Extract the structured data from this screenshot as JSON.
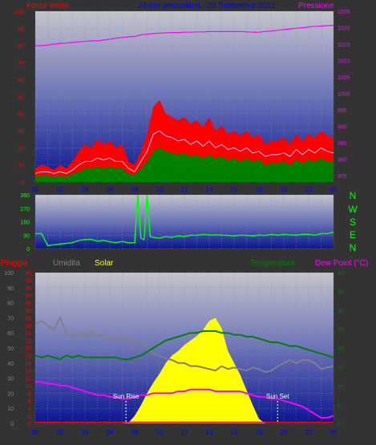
{
  "header": {
    "left_label": "Forza vento",
    "center_title": "24 ore precedenti - 22 Settembre 2021",
    "right_label": "Pressione"
  },
  "compass": [
    "N",
    "W",
    "S",
    "E",
    "N"
  ],
  "lower_header": {
    "rain_label": "Pioggia",
    "humidity_label": "Umidita",
    "solar_label": "Solar",
    "temp_label": "Temperatura",
    "dew_label": "Dew Point (°C)"
  },
  "annotations": {
    "sunrise": "Sun Rise",
    "sunset": "Sun Set"
  },
  "x_ticks": [
    "00",
    "02",
    "04",
    "06",
    "08",
    "10",
    "12",
    "14",
    "16",
    "18",
    "20",
    "22",
    "00"
  ],
  "colors": {
    "gust": "#ff0000",
    "avg_wind": "#008000",
    "wind_mid": "#c0c0ff",
    "pressure": "#ff00ff",
    "direction": "#00ff00",
    "humidity": "#808080",
    "temperature": "#008000",
    "dewpoint": "#ff00ff",
    "solar": "#ffff00",
    "rain": "#ff0000",
    "text_blue": "#0000ff"
  },
  "chart_data": [
    {
      "type": "line",
      "name": "wind_pressure",
      "x": [
        0,
        0.5,
        1,
        1.5,
        2,
        2.5,
        3,
        3.5,
        4,
        4.5,
        5,
        5.5,
        6,
        6.5,
        7,
        7.5,
        8,
        8.5,
        9,
        9.5,
        10,
        10.5,
        11,
        11.5,
        12,
        12.5,
        13,
        13.5,
        14,
        14.5,
        15,
        15.5,
        16,
        16.5,
        17,
        17.5,
        18,
        18.5,
        19,
        19.5,
        20,
        20.5,
        21,
        21.5,
        22,
        22.5,
        23,
        23.5,
        24
      ],
      "xlabel": "",
      "left_axis": {
        "label": "Forza vento",
        "range": [
          0,
          100
        ],
        "ticks": [
          0,
          10,
          20,
          30,
          40,
          50,
          60,
          70,
          80,
          90,
          100
        ]
      },
      "right_axis": {
        "label": "Pressione",
        "range": [
          973,
          1025
        ],
        "ticks": [
          975,
          980,
          985,
          990,
          995,
          1000,
          1005,
          1010,
          1015,
          1020,
          1025
        ]
      },
      "series": [
        {
          "name": "gust",
          "axis": "left",
          "values": [
            8,
            10,
            9,
            7,
            10,
            8,
            12,
            18,
            22,
            20,
            25,
            22,
            24,
            20,
            22,
            12,
            10,
            18,
            28,
            44,
            48,
            40,
            38,
            36,
            38,
            34,
            36,
            32,
            38,
            30,
            33,
            28,
            30,
            27,
            30,
            26,
            28,
            22,
            24,
            24,
            26,
            22,
            28,
            24,
            28,
            26,
            30,
            27,
            26
          ]
        },
        {
          "name": "gust_mid",
          "axis": "left",
          "values": [
            5,
            6,
            6,
            5,
            6,
            5,
            7,
            10,
            12,
            12,
            14,
            13,
            14,
            12,
            12,
            8,
            6,
            12,
            18,
            28,
            30,
            27,
            26,
            24,
            25,
            22,
            24,
            21,
            24,
            20,
            22,
            19,
            20,
            18,
            20,
            17,
            18,
            15,
            16,
            16,
            17,
            15,
            19,
            16,
            19,
            17,
            20,
            18,
            17
          ]
        },
        {
          "name": "average",
          "axis": "left",
          "values": [
            3,
            4,
            4,
            3,
            4,
            3,
            5,
            6,
            8,
            8,
            9,
            8,
            9,
            8,
            8,
            5,
            4,
            8,
            12,
            18,
            20,
            18,
            17,
            16,
            17,
            15,
            16,
            14,
            16,
            14,
            15,
            13,
            14,
            12,
            14,
            12,
            13,
            10,
            11,
            11,
            12,
            10,
            13,
            11,
            13,
            12,
            14,
            12,
            12
          ]
        },
        {
          "name": "pressure",
          "axis": "right",
          "values": [
            1014.5,
            1014.5,
            1014.7,
            1015.0,
            1015.2,
            1015.3,
            1015.5,
            1015.7,
            1015.8,
            1016.0,
            1016.0,
            1016.2,
            1016.5,
            1016.8,
            1017.0,
            1017.2,
            1017.3,
            1017.8,
            1018.0,
            1018.2,
            1018.3,
            1018.4,
            1018.5,
            1018.5,
            1018.6,
            1018.6,
            1018.7,
            1018.7,
            1018.8,
            1018.8,
            1018.8,
            1018.8,
            1018.8,
            1018.8,
            1018.7,
            1018.6,
            1018.6,
            1018.8,
            1019.0,
            1019.2,
            1019.4,
            1019.6,
            1019.8,
            1020.0,
            1020.2,
            1020.4,
            1020.5,
            1020.6,
            1020.7
          ]
        }
      ]
    },
    {
      "type": "line",
      "name": "wind_direction",
      "x": [
        0,
        0.5,
        1,
        1.5,
        2,
        2.5,
        3,
        3.5,
        4,
        4.5,
        5,
        5.5,
        6,
        6.5,
        7,
        7.5,
        8,
        8.25,
        8.5,
        8.75,
        9,
        9.25,
        9.5,
        10,
        10.5,
        11,
        11.5,
        12,
        12.5,
        13,
        13.5,
        14,
        14.5,
        15,
        15.5,
        16,
        16.5,
        17,
        17.5,
        18,
        18.5,
        19,
        19.5,
        20,
        20.5,
        21,
        21.5,
        22,
        22.5,
        23,
        23.5,
        24
      ],
      "y_axis": {
        "range": [
          0,
          360
        ],
        "ticks": [
          0,
          90,
          180,
          270,
          360
        ]
      },
      "series": [
        {
          "name": "direction",
          "values": [
            100,
            100,
            20,
            25,
            30,
            35,
            40,
            55,
            60,
            62,
            50,
            55,
            45,
            40,
            48,
            38,
            40,
            360,
            70,
            60,
            360,
            80,
            75,
            70,
            80,
            75,
            85,
            80,
            90,
            88,
            95,
            90,
            92,
            90,
            88,
            85,
            90,
            88,
            85,
            90,
            88,
            95,
            90,
            95,
            92,
            90,
            95,
            95,
            90,
            100,
            100,
            110
          ]
        }
      ]
    },
    {
      "type": "area",
      "name": "temp_humidity_solar",
      "x": [
        0,
        0.5,
        1,
        1.5,
        2,
        2.5,
        3,
        3.5,
        4,
        4.5,
        5,
        5.5,
        6,
        6.5,
        7,
        7.5,
        8,
        8.5,
        9,
        9.5,
        10,
        10.5,
        11,
        11.5,
        12,
        12.5,
        13,
        13.5,
        14,
        14.5,
        15,
        15.5,
        16,
        16.5,
        17,
        17.5,
        18,
        18.5,
        19,
        19.5,
        20,
        20.5,
        21,
        21.5,
        22,
        22.5,
        23,
        23.5,
        24
      ],
      "humidity_axis": {
        "label": "Umidita",
        "range": [
          0,
          100
        ],
        "ticks": [
          0,
          10,
          20,
          30,
          40,
          50,
          60,
          70,
          80,
          90,
          100
        ]
      },
      "rain_axis": {
        "label": "Pioggia",
        "range": [
          0,
          40
        ],
        "ticks": [
          0,
          2,
          4,
          6,
          8,
          10,
          12,
          14,
          16,
          18,
          20,
          22,
          24,
          26,
          28,
          30,
          32,
          34,
          36,
          38,
          40
        ]
      },
      "temp_axis": {
        "label": "Temperatura",
        "range": [
          0,
          40
        ],
        "ticks": [
          0,
          5,
          10,
          15,
          20,
          25,
          30,
          35,
          40
        ]
      },
      "series": [
        {
          "name": "humidity",
          "axis": "humidity",
          "values": [
            66,
            68,
            65,
            62,
            70,
            60,
            58,
            60,
            58,
            60,
            58,
            58,
            56,
            57,
            55,
            56,
            54,
            52,
            50,
            46,
            45,
            43,
            42,
            40,
            40,
            38,
            38,
            37,
            36,
            35,
            38,
            36,
            37,
            36,
            35,
            37,
            36,
            34,
            35,
            38,
            40,
            42,
            40,
            42,
            42,
            40,
            36,
            37,
            38
          ]
        },
        {
          "name": "temperature",
          "axis": "temp",
          "values": [
            18,
            17.5,
            18,
            17.5,
            17,
            18,
            17.5,
            18,
            17.5,
            17.5,
            17.5,
            17.5,
            17.5,
            17.5,
            17,
            17,
            17.5,
            18,
            19,
            20,
            21,
            22,
            22.5,
            23,
            23.5,
            24,
            24,
            24.5,
            24.5,
            24.5,
            24,
            24,
            23.5,
            23.5,
            23,
            23,
            22.5,
            22,
            21.5,
            21.5,
            21,
            20.5,
            20.5,
            20,
            19.5,
            19,
            18.5,
            18,
            17.5
          ]
        },
        {
          "name": "dewpoint",
          "axis": "temp",
          "values": [
            11,
            11,
            10.5,
            10.5,
            10,
            10,
            9.5,
            9,
            8.5,
            8,
            7.5,
            7.5,
            7,
            7,
            6.5,
            6.5,
            7,
            7.5,
            7.5,
            8,
            8,
            8,
            8,
            8.5,
            8.5,
            9,
            9,
            9,
            9,
            8.5,
            8.5,
            8.5,
            8.5,
            8.5,
            8,
            7.5,
            7,
            7,
            6.5,
            6.5,
            6,
            5.5,
            5,
            4.5,
            3.5,
            2.5,
            1.5,
            1.5,
            2
          ]
        },
        {
          "name": "solar",
          "axis": "humidity",
          "values": [
            0,
            0,
            0,
            0,
            0,
            0,
            0,
            0,
            0,
            0,
            0,
            0,
            0,
            0,
            0,
            0.5,
            5,
            12,
            20,
            27,
            33,
            40,
            45,
            48,
            52,
            55,
            58,
            62,
            68,
            70,
            63,
            48,
            40,
            32,
            22,
            12,
            3,
            0,
            0,
            0,
            0,
            0,
            0,
            0,
            0,
            0,
            0,
            0,
            0
          ]
        },
        {
          "name": "rain",
          "axis": "rain",
          "values": [
            0.3,
            0.3,
            0.3,
            0.3,
            0.3,
            0.3,
            0.3,
            0.3,
            0.3,
            0.3,
            0.3,
            0.3,
            0.3,
            0.3,
            0.3,
            0.3,
            0.3,
            0.3,
            0.3,
            0.3,
            0.3,
            0.3,
            0.3,
            0.3,
            0.3,
            0.3,
            0.3,
            0.3,
            0.3,
            0.3,
            0.3,
            0.3,
            0.3,
            0.3,
            0.3,
            0.3,
            0.3,
            0.3,
            0.3,
            0.3,
            0.3,
            0.3,
            0.3,
            0.3,
            0.3,
            0.3,
            0.3,
            0.3,
            0.3
          ]
        }
      ],
      "sunrise_hour": 7.3,
      "sunset_hour": 19.5
    }
  ]
}
